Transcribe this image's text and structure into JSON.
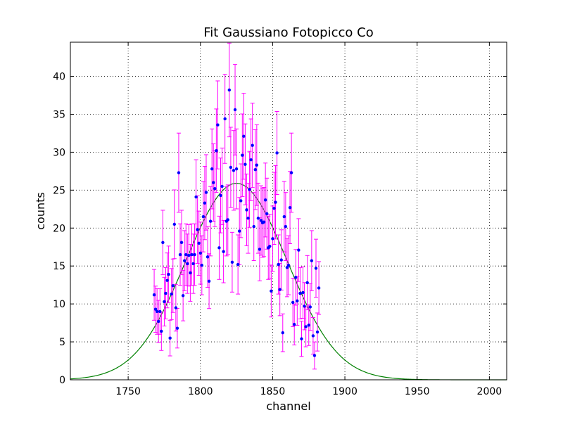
{
  "chart_data": {
    "type": "scatter",
    "title": "Fit Gaussiano Fotopicco Co",
    "xlabel": "channel",
    "ylabel": "counts",
    "xlim": [
      1710,
      2012
    ],
    "ylim": [
      0,
      44.5
    ],
    "x_ticks": [
      "1750",
      "1800",
      "1850",
      "1900",
      "1950",
      "2000"
    ],
    "y_ticks": [
      "0",
      "5",
      "10",
      "15",
      "20",
      "25",
      "30",
      "35",
      "40"
    ],
    "grid": true,
    "series": [
      {
        "kind": "errorbar",
        "marker_color": "#0000ff",
        "errorbar_color": "#ff00ff",
        "x": [
          1768,
          1769,
          1770,
          1771,
          1772,
          1773,
          1774,
          1775,
          1776,
          1777,
          1778,
          1779,
          1780,
          1781,
          1782,
          1783,
          1784,
          1785,
          1786,
          1787,
          1788,
          1789,
          1790,
          1791,
          1792,
          1793,
          1794,
          1795,
          1796,
          1797,
          1798,
          1799,
          1800,
          1801,
          1802,
          1803,
          1804,
          1805,
          1806,
          1807,
          1808,
          1809,
          1810,
          1811,
          1812,
          1813,
          1814,
          1815,
          1816,
          1817,
          1818,
          1819,
          1820,
          1821,
          1822,
          1823,
          1824,
          1825,
          1826,
          1827,
          1828,
          1829,
          1830,
          1831,
          1832,
          1833,
          1834,
          1835,
          1836,
          1837,
          1838,
          1839,
          1840,
          1841,
          1842,
          1843,
          1844,
          1845,
          1846,
          1847,
          1848,
          1849,
          1850,
          1851,
          1852,
          1853,
          1854,
          1855,
          1856,
          1857,
          1858,
          1859,
          1860,
          1861,
          1862,
          1863,
          1864,
          1865,
          1866,
          1867,
          1868,
          1869,
          1870,
          1871,
          1872,
          1873,
          1874,
          1875,
          1876,
          1877,
          1878,
          1879,
          1880,
          1881,
          1882
        ],
        "y": [
          11.2,
          9.3,
          9.0,
          7.7,
          9.0,
          6.4,
          18.1,
          10.3,
          11.4,
          13.1,
          13.9,
          5.5,
          11.3,
          12.4,
          20.5,
          9.5,
          6.8,
          27.3,
          16.5,
          18.1,
          11.1,
          15.7,
          16.5,
          15.3,
          16.4,
          14.1,
          16.5,
          15.3,
          16.5,
          24.1,
          19.8,
          18.0,
          16.7,
          15.1,
          21.5,
          23.3,
          24.7,
          16.2,
          13.0,
          20.9,
          27.8,
          26.0,
          25.2,
          30.2,
          33.6,
          17.4,
          24.3,
          25.5,
          16.9,
          34.4,
          20.9,
          21.1,
          38.2,
          28.0,
          15.5,
          27.6,
          35.6,
          27.8,
          15.2,
          19.6,
          23.6,
          29.6,
          32.1,
          28.4,
          22.4,
          21.3,
          25.1,
          29.0,
          30.9,
          20.2,
          27.7,
          28.3,
          21.3,
          17.2,
          21.0,
          20.7,
          20.8,
          23.7,
          21.9,
          17.4,
          17.6,
          11.7,
          18.6,
          22.6,
          23.4,
          29.9,
          15.2,
          11.9,
          15.8,
          6.2,
          21.5,
          20.2,
          14.8,
          15.1,
          22.7,
          27.3,
          10.2,
          7.3,
          13.5,
          10.4,
          17.1,
          11.4,
          5.4,
          11.5,
          9.7,
          7.0,
          12.8,
          7.2,
          9.6,
          15.7,
          5.8,
          3.2,
          14.7,
          6.3,
          12.1
        ],
        "yerr": [
          3.35,
          3.05,
          3.0,
          2.77,
          3.0,
          2.53,
          4.25,
          3.21,
          3.38,
          3.62,
          3.73,
          2.35,
          3.36,
          3.52,
          4.53,
          3.08,
          2.61,
          5.22,
          4.06,
          4.25,
          3.33,
          3.96,
          4.06,
          3.91,
          4.05,
          3.75,
          4.06,
          3.91,
          4.06,
          4.91,
          4.45,
          4.24,
          4.09,
          3.89,
          4.64,
          4.83,
          4.97,
          4.02,
          3.61,
          4.57,
          5.27,
          5.1,
          5.02,
          5.5,
          5.8,
          4.17,
          4.93,
          5.05,
          4.11,
          5.87,
          4.57,
          4.59,
          6.18,
          5.29,
          3.94,
          5.25,
          5.97,
          5.27,
          3.9,
          4.43,
          4.86,
          5.44,
          5.67,
          5.33,
          4.73,
          4.62,
          5.01,
          5.39,
          5.56,
          4.49,
          5.26,
          5.32,
          4.62,
          4.15,
          4.58,
          4.55,
          4.56,
          4.87,
          4.68,
          4.17,
          4.2,
          3.42,
          4.31,
          4.75,
          4.84,
          5.47,
          3.9,
          3.45,
          3.97,
          2.49,
          4.64,
          4.49,
          3.85,
          3.89,
          4.76,
          5.22,
          3.19,
          2.7,
          3.67,
          3.22,
          4.14,
          3.38,
          2.32,
          3.39,
          3.11,
          2.65,
          3.58,
          2.68,
          3.1,
          3.96,
          2.41,
          1.79,
          3.83,
          2.51,
          3.48
        ]
      },
      {
        "kind": "fit",
        "line_color": "#008000",
        "amplitude": 25.9,
        "mean": 1825,
        "sigma": 35
      }
    ]
  }
}
